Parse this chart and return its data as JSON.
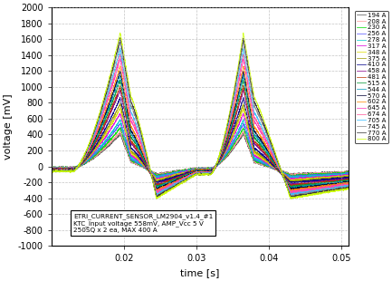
{
  "xlabel": "time [s]",
  "ylabel": "voltage [mV]",
  "xlim": [
    0.01,
    0.051
  ],
  "ylim": [
    -1000,
    2000
  ],
  "yticks": [
    -1000,
    -800,
    -600,
    -400,
    -200,
    0,
    200,
    400,
    600,
    800,
    1000,
    1200,
    1400,
    1600,
    1800,
    2000
  ],
  "xticks": [
    0.02,
    0.03,
    0.04,
    0.05
  ],
  "annotation": "ETRI_CURRENT_SENSOR_LM2904_v1.4_#1\nKTC_Input voltage 558mV, AMP_Vcc 5 V\n250SQ x 2 ea, MAX 400 A",
  "background_color": "#ffffff",
  "legend_entries": [
    {
      "label": "194 A",
      "color": "#555555"
    },
    {
      "label": "208 A",
      "color": "#ff9999"
    },
    {
      "label": "230 A",
      "color": "#00dd00"
    },
    {
      "label": "256 A",
      "color": "#5555ff"
    },
    {
      "label": "278 A",
      "color": "#00cccc"
    },
    {
      "label": "317 A",
      "color": "#dd00dd"
    },
    {
      "label": "348 A",
      "color": "#dddd00"
    },
    {
      "label": "375 A",
      "color": "#999900"
    },
    {
      "label": "410 A",
      "color": "#000088"
    },
    {
      "label": "458 A",
      "color": "#880088"
    },
    {
      "label": "481 A",
      "color": "#bb3300"
    },
    {
      "label": "515 A",
      "color": "#009933"
    },
    {
      "label": "544 A",
      "color": "#0099bb"
    },
    {
      "label": "570 A",
      "color": "#000033"
    },
    {
      "label": "602 A",
      "color": "#ff8800"
    },
    {
      "label": "645 A",
      "color": "#ff33bb"
    },
    {
      "label": "674 A",
      "color": "#ff5599"
    },
    {
      "label": "705 A",
      "color": "#33bbff"
    },
    {
      "label": "745 A",
      "color": "#888888"
    },
    {
      "label": "770 A",
      "color": "#333333"
    },
    {
      "label": "800 A",
      "color": "#ccff00"
    }
  ],
  "figsize": [
    4.33,
    3.1
  ],
  "dpi": 100
}
